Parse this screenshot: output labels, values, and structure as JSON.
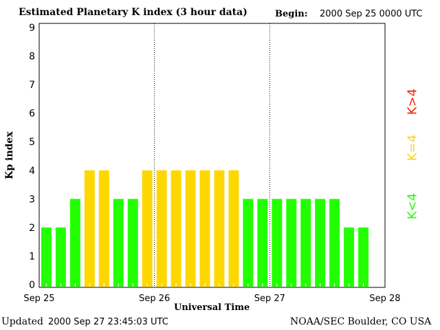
{
  "chart_data": {
    "type": "bar",
    "title": "Estimated Planetary K index (3 hour data)",
    "begin_label": "Begin:",
    "begin_value": "2000 Sep 25 0000 UTC",
    "xlabel": "Universal Time",
    "ylabel": "Kp index",
    "ylim": [
      0,
      9
    ],
    "yticks": [
      "0",
      "1",
      "2",
      "3",
      "4",
      "5",
      "6",
      "7",
      "8",
      "9"
    ],
    "xticks": [
      "Sep 25",
      "Sep 26",
      "Sep 27",
      "Sep 28"
    ],
    "interval_hours": 3,
    "values": [
      2,
      2,
      3,
      4,
      4,
      3,
      3,
      4,
      4,
      4,
      4,
      4,
      4,
      4,
      3,
      3,
      3,
      3,
      3,
      3,
      3,
      2,
      2
    ],
    "legend": [
      {
        "label": "K<4",
        "color": "#22ff00"
      },
      {
        "label": "K=4",
        "color": "#ffd700"
      },
      {
        "label": "K>4",
        "color": "#ff2200"
      }
    ],
    "legend_placement": "right",
    "grid": "dotted vertical at day boundaries"
  },
  "footer": {
    "updated_label": "Updated",
    "updated_value": "2000 Sep 27 23:45:03 UTC",
    "source": "NOAA/SEC Boulder, CO USA"
  }
}
